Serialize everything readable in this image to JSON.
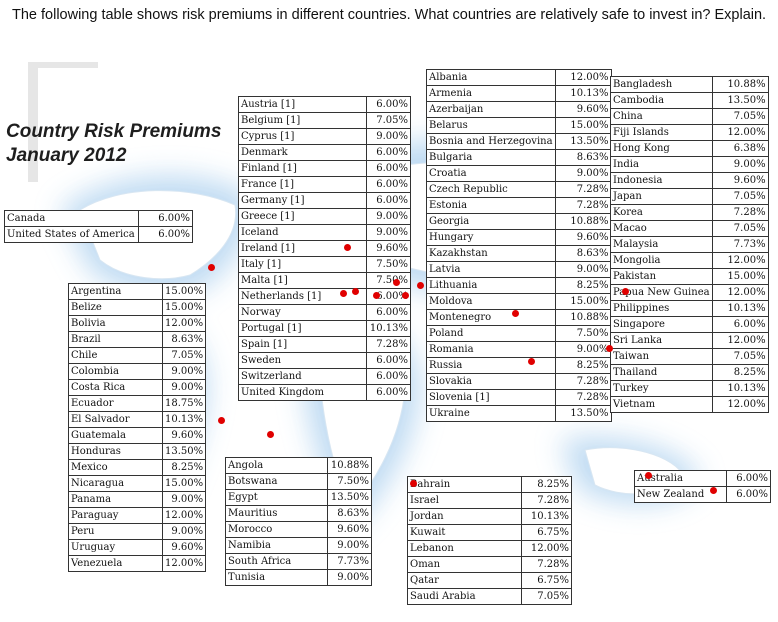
{
  "question": "The following table shows risk premiums in different countries. What countries are relatively safe to invest in? Explain.",
  "title": {
    "line1": "Country Risk Premiums",
    "line2": "January 2012"
  },
  "tables": {
    "north_america": [
      [
        "Canada",
        "6.00%"
      ],
      [
        "United States of America",
        "6.00%"
      ]
    ],
    "latin_america": [
      [
        "Argentina",
        "15.00%"
      ],
      [
        "Belize",
        "15.00%"
      ],
      [
        "Bolivia",
        "12.00%"
      ],
      [
        "Brazil",
        "8.63%"
      ],
      [
        "Chile",
        "7.05%"
      ],
      [
        "Colombia",
        "9.00%"
      ],
      [
        "Costa Rica",
        "9.00%"
      ],
      [
        "Ecuador",
        "18.75%"
      ],
      [
        "El Salvador",
        "10.13%"
      ],
      [
        "Guatemala",
        "9.60%"
      ],
      [
        "Honduras",
        "13.50%"
      ],
      [
        "Mexico",
        "8.25%"
      ],
      [
        "Nicaragua",
        "15.00%"
      ],
      [
        "Panama",
        "9.00%"
      ],
      [
        "Paraguay",
        "12.00%"
      ],
      [
        "Peru",
        "9.00%"
      ],
      [
        "Uruguay",
        "9.60%"
      ],
      [
        "Venezuela",
        "12.00%"
      ]
    ],
    "western_europe": [
      [
        "Austria [1]",
        "6.00%"
      ],
      [
        "Belgium [1]",
        "7.05%"
      ],
      [
        "Cyprus [1]",
        "9.00%"
      ],
      [
        "Denmark",
        "6.00%"
      ],
      [
        "Finland [1]",
        "6.00%"
      ],
      [
        "France [1]",
        "6.00%"
      ],
      [
        "Germany [1]",
        "6.00%"
      ],
      [
        "Greece [1]",
        "9.00%"
      ],
      [
        "Iceland",
        "9.00%"
      ],
      [
        "Ireland [1]",
        "9.60%"
      ],
      [
        "Italy [1]",
        "7.50%"
      ],
      [
        "Malta [1]",
        "7.50%"
      ],
      [
        "Netherlands [1]",
        "6.00%"
      ],
      [
        "Norway",
        "6.00%"
      ],
      [
        "Portugal [1]",
        "10.13%"
      ],
      [
        "Spain [1]",
        "7.28%"
      ],
      [
        "Sweden",
        "6.00%"
      ],
      [
        "Switzerland",
        "6.00%"
      ],
      [
        "United Kingdom",
        "6.00%"
      ]
    ],
    "eastern_europe": [
      [
        "Albania",
        "12.00%"
      ],
      [
        "Armenia",
        "10.13%"
      ],
      [
        "Azerbaijan",
        "9.60%"
      ],
      [
        "Belarus",
        "15.00%"
      ],
      [
        "Bosnia and Herzegovina",
        "13.50%"
      ],
      [
        "Bulgaria",
        "8.63%"
      ],
      [
        "Croatia",
        "9.00%"
      ],
      [
        "Czech Republic",
        "7.28%"
      ],
      [
        "Estonia",
        "7.28%"
      ],
      [
        "Georgia",
        "10.88%"
      ],
      [
        "Hungary",
        "9.60%"
      ],
      [
        "Kazakhstan",
        "8.63%"
      ],
      [
        "Latvia",
        "9.00%"
      ],
      [
        "Lithuania",
        "8.25%"
      ],
      [
        "Moldova",
        "15.00%"
      ],
      [
        "Montenegro",
        "10.88%"
      ],
      [
        "Poland",
        "7.50%"
      ],
      [
        "Romania",
        "9.00%"
      ],
      [
        "Russia",
        "8.25%"
      ],
      [
        "Slovakia",
        "7.28%"
      ],
      [
        "Slovenia [1]",
        "7.28%"
      ],
      [
        "Ukraine",
        "13.50%"
      ]
    ],
    "asia": [
      [
        "Bangladesh",
        "10.88%"
      ],
      [
        "Cambodia",
        "13.50%"
      ],
      [
        "China",
        "7.05%"
      ],
      [
        "Fiji Islands",
        "12.00%"
      ],
      [
        "Hong Kong",
        "6.38%"
      ],
      [
        "India",
        "9.00%"
      ],
      [
        "Indonesia",
        "9.60%"
      ],
      [
        "Japan",
        "7.05%"
      ],
      [
        "Korea",
        "7.28%"
      ],
      [
        "Macao",
        "7.05%"
      ],
      [
        "Malaysia",
        "7.73%"
      ],
      [
        "Mongolia",
        "12.00%"
      ],
      [
        "Pakistan",
        "15.00%"
      ],
      [
        "Papua New Guinea",
        "12.00%"
      ],
      [
        "Philippines",
        "10.13%"
      ],
      [
        "Singapore",
        "6.00%"
      ],
      [
        "Sri Lanka",
        "12.00%"
      ],
      [
        "Taiwan",
        "7.05%"
      ],
      [
        "Thailand",
        "8.25%"
      ],
      [
        "Turkey",
        "10.13%"
      ],
      [
        "Vietnam",
        "12.00%"
      ]
    ],
    "africa": [
      [
        "Angola",
        "10.88%"
      ],
      [
        "Botswana",
        "7.50%"
      ],
      [
        "Egypt",
        "13.50%"
      ],
      [
        "Mauritius",
        "8.63%"
      ],
      [
        "Morocco",
        "9.60%"
      ],
      [
        "Namibia",
        "9.00%"
      ],
      [
        "South Africa",
        "7.73%"
      ],
      [
        "Tunisia",
        "9.00%"
      ]
    ],
    "middle_east": [
      [
        "Bahrain",
        "8.25%"
      ],
      [
        "Israel",
        "7.28%"
      ],
      [
        "Jordan",
        "10.13%"
      ],
      [
        "Kuwait",
        "6.75%"
      ],
      [
        "Lebanon",
        "12.00%"
      ],
      [
        "Oman",
        "7.28%"
      ],
      [
        "Qatar",
        "6.75%"
      ],
      [
        "Saudi Arabia",
        "7.05%"
      ]
    ],
    "oceania": [
      [
        "Australia",
        "6.00%"
      ],
      [
        "New Zealand",
        "6.00%"
      ]
    ]
  },
  "colors": {
    "glow": "#bcd9f2",
    "land": "#ffffff",
    "dot": "#e00000",
    "border": "#333333"
  }
}
